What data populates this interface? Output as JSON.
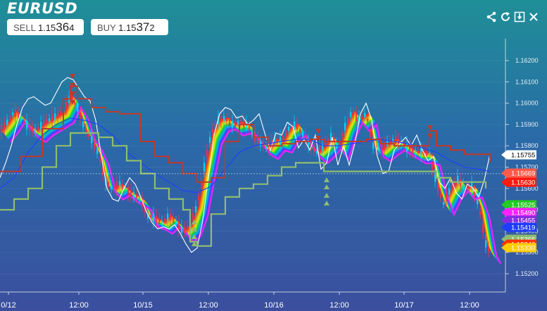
{
  "header": {
    "symbol": "EURUSD",
    "sell": {
      "label": "SELL",
      "prefix": "1.15",
      "big": "36",
      "small": "4"
    },
    "buy": {
      "label": "BUY",
      "prefix": "1.15",
      "big": "37",
      "small": "2"
    }
  },
  "toolbar": {
    "icons": [
      "share-icon",
      "refresh-icon",
      "download-icon",
      "close-icon"
    ]
  },
  "chart_data": {
    "type": "line",
    "x_ticks": [
      "0/12",
      "12:00",
      "10/15",
      "12:00",
      "10/16",
      "12:00",
      "10/17",
      "12:00"
    ],
    "y_ticks": [
      "1.16200",
      "1.16100",
      "1.16000",
      "1.15900",
      "1.15800",
      "1.15700",
      "1.15600",
      "1.15500",
      "1.15400",
      "1.15300",
      "1.15200"
    ],
    "ylim": [
      1.1515,
      1.1627
    ],
    "current_price": 1.15669,
    "price_tags": [
      {
        "value": "1.15755",
        "bg": "#ffffff",
        "fg": "#000000"
      },
      {
        "value": "1.15669",
        "bg": "#ff5a4a",
        "fg": "#ffffff"
      },
      {
        "value": "1.15630",
        "bg": "#ff1a10",
        "fg": "#ffffff"
      },
      {
        "value": "1.15525",
        "bg": "#22cc22",
        "fg": "#ffffff"
      },
      {
        "value": "1.15490",
        "bg": "#ff22ff",
        "fg": "#ffffff"
      },
      {
        "value": "1.15455",
        "bg": "#8a2be2",
        "fg": "#ffffff"
      },
      {
        "value": "1.15419",
        "bg": "#1f3dff",
        "fg": "#ffffff"
      },
      {
        "value": "1.15366",
        "bg": "#8fbc6f",
        "fg": "#ffffff"
      },
      {
        "value": "1.15340",
        "bg": "#ff3300",
        "fg": "#ffffff"
      },
      {
        "value": "1.15330",
        "bg": "#ffcc00",
        "fg": "#ffffff"
      }
    ],
    "series": [
      {
        "color": "#ffffff",
        "x": [
          0,
          8,
          16,
          24,
          32,
          40,
          48,
          56,
          64,
          72,
          80,
          88,
          96,
          104,
          112,
          120,
          128,
          136,
          144,
          152,
          160,
          168,
          176,
          184,
          192,
          200,
          208,
          216,
          224,
          232,
          240,
          248,
          256,
          264,
          272,
          280,
          288,
          296,
          304,
          312,
          320,
          328,
          336,
          344,
          352,
          360,
          368,
          376,
          384,
          392,
          400,
          408,
          416,
          424,
          432,
          440,
          448,
          456,
          464,
          472,
          480,
          488,
          496,
          504,
          512,
          520,
          528,
          536,
          544,
          552,
          560,
          568,
          576,
          584,
          592,
          600,
          608,
          616,
          624,
          632,
          640,
          648,
          656,
          664,
          672,
          680,
          688,
          696
        ],
        "y": [
          1.1565,
          1.1572,
          1.158,
          1.159,
          1.1598,
          1.1602,
          1.1603,
          1.1601,
          1.1599,
          1.16,
          1.1605,
          1.161,
          1.1612,
          1.1611,
          1.1607,
          1.1603,
          1.1601,
          1.1592,
          1.1575,
          1.156,
          1.1555,
          1.1554,
          1.156,
          1.1565,
          1.1562,
          1.1556,
          1.1549,
          1.1544,
          1.1541,
          1.1542,
          1.1541,
          1.1543,
          1.1539,
          1.1534,
          1.153,
          1.1532,
          1.1545,
          1.1565,
          1.1585,
          1.1595,
          1.1598,
          1.1597,
          1.1593,
          1.1594,
          1.159,
          1.1592,
          1.1595,
          1.1586,
          1.1578,
          1.1586,
          1.1585,
          1.1591,
          1.1589,
          1.1579,
          1.1583,
          1.1578,
          1.1585,
          1.1569,
          1.1572,
          1.1584,
          1.1571,
          1.158,
          1.1571,
          1.1581,
          1.1595,
          1.16,
          1.1592,
          1.1575,
          1.1567,
          1.1568,
          1.1578,
          1.1581,
          1.1584,
          1.158,
          1.1585,
          1.1578,
          1.1573,
          1.1575,
          1.1563,
          1.156,
          1.1565,
          1.1558,
          1.1555,
          1.1562,
          1.156,
          1.1556,
          1.1564,
          1.1576
        ]
      },
      {
        "color": "#1f3dff",
        "x": [
          0,
          20,
          40,
          60,
          80,
          100,
          120,
          140,
          160,
          180,
          200,
          220,
          240,
          260,
          280,
          300,
          320,
          340,
          360,
          380,
          400,
          420,
          440,
          460,
          480,
          500,
          520,
          540,
          560,
          580,
          600,
          620,
          640,
          660,
          680,
          696
        ],
        "y": [
          1.156,
          1.1565,
          1.1577,
          1.1585,
          1.159,
          1.1593,
          1.1592,
          1.159,
          1.1585,
          1.1577,
          1.1572,
          1.1567,
          1.1563,
          1.1559,
          1.1558,
          1.1561,
          1.1569,
          1.1577,
          1.158,
          1.1581,
          1.1582,
          1.1583,
          1.1583,
          1.158,
          1.158,
          1.1581,
          1.1582,
          1.1583,
          1.1582,
          1.1581,
          1.1579,
          1.1577,
          1.1573,
          1.157,
          1.1569,
          1.1568
        ]
      },
      {
        "color": "#c0392b",
        "x": [
          0,
          30,
          60,
          90,
          100,
          110,
          130,
          150,
          170,
          200,
          220,
          240,
          260,
          280,
          300,
          320,
          340,
          360,
          380,
          400,
          420,
          440,
          460,
          480,
          500,
          520,
          540,
          560,
          580,
          600,
          610,
          620,
          640,
          660,
          680,
          696
        ],
        "y": [
          1.1568,
          1.1575,
          1.1588,
          1.1602,
          1.1608,
          1.1602,
          1.1598,
          1.1596,
          1.1595,
          1.1582,
          1.1575,
          1.1572,
          1.1567,
          1.1563,
          1.1565,
          1.1582,
          1.159,
          1.1584,
          1.158,
          1.1581,
          1.1582,
          1.1583,
          1.1582,
          1.1582,
          1.1582,
          1.1583,
          1.1581,
          1.158,
          1.158,
          1.158,
          1.1587,
          1.158,
          1.1578,
          1.1576,
          1.1576,
          1.1572
        ]
      },
      {
        "color": "#8fbc6f",
        "x": [
          0,
          20,
          40,
          60,
          80,
          100,
          120,
          140,
          160,
          180,
          200,
          220,
          240,
          260,
          270,
          280,
          300,
          320,
          340,
          360,
          380,
          400,
          420,
          440,
          460,
          470,
          480,
          500,
          520,
          540,
          560,
          580,
          600,
          620,
          640,
          660,
          680,
          690
        ],
        "y": [
          1.155,
          1.1555,
          1.156,
          1.157,
          1.158,
          1.1586,
          1.1586,
          1.1584,
          1.158,
          1.1573,
          1.1567,
          1.156,
          1.1555,
          1.155,
          1.1535,
          1.1533,
          1.1548,
          1.1556,
          1.156,
          1.1562,
          1.1566,
          1.157,
          1.1572,
          1.1572,
          1.1568,
          1.1568,
          1.1568,
          1.1568,
          1.1568,
          1.1568,
          1.1568,
          1.1568,
          1.1568,
          1.1565,
          1.1563,
          1.1563,
          1.1563,
          1.156
        ]
      },
      {
        "color": "#ff2d10",
        "x": [
          0,
          10,
          20,
          30,
          40,
          50,
          60,
          70,
          80,
          90,
          100,
          110,
          120,
          130,
          140,
          150,
          160,
          170,
          180,
          190,
          200,
          210,
          220,
          230,
          240,
          250,
          260,
          270,
          280,
          290,
          300,
          310,
          320,
          330,
          340,
          350,
          360,
          370,
          380,
          390,
          400,
          410,
          420,
          430,
          440,
          450,
          460,
          470,
          480,
          490,
          500,
          510,
          520,
          530,
          540,
          550,
          560,
          570,
          580,
          590,
          600,
          610,
          620,
          630,
          640,
          650,
          660,
          670,
          680,
          690,
          696
        ],
        "y": [
          1.1587,
          1.1591,
          1.1596,
          1.1593,
          1.1589,
          1.1587,
          1.159,
          1.1592,
          1.1594,
          1.1596,
          1.1603,
          1.1598,
          1.1588,
          1.1583,
          1.1576,
          1.1563,
          1.156,
          1.1562,
          1.1559,
          1.1557,
          1.1555,
          1.1547,
          1.1546,
          1.1544,
          1.1547,
          1.1544,
          1.154,
          1.1543,
          1.1552,
          1.157,
          1.1586,
          1.1592,
          1.1593,
          1.159,
          1.1591,
          1.159,
          1.1585,
          1.1581,
          1.1579,
          1.1583,
          1.1582,
          1.1588,
          1.159,
          1.1585,
          1.158,
          1.1577,
          1.158,
          1.1584,
          1.1579,
          1.1589,
          1.1596,
          1.1592,
          1.1595,
          1.158,
          1.1578,
          1.1581,
          1.1583,
          1.1581,
          1.1579,
          1.1577,
          1.1577,
          1.1576,
          1.1562,
          1.1553,
          1.156,
          1.1564,
          1.156,
          1.1561,
          1.1552,
          1.1534,
          1.153
        ]
      }
    ]
  }
}
